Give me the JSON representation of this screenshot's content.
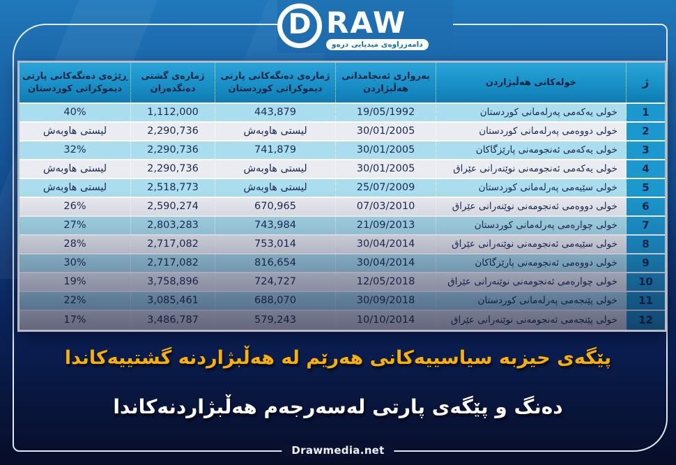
{
  "header": {
    "brand_initial": "D",
    "brand_rest": "RAW",
    "tagline": "دامەزراوەی میدیایی درەو"
  },
  "chart_data": {
    "type": "table",
    "direction": "rtl",
    "columns": [
      "ژ",
      "خولەکانی هەڵبژاردن",
      "بەرواری ئەنجامدانی هەڵبژاردن",
      "ژمارەی دەنگەکانی پارتی دیموکراتی کوردستان",
      "ژمارەی گشتی دەنگدەران",
      "ڕێژەی دەنگەکانی پارتی دیموکراتی کوردستان"
    ],
    "rows": [
      {
        "no": "1",
        "round": "خولی یەکەمی پەرلەمانی کوردستان",
        "date": "19/05/1992",
        "kdp_votes": "443,879",
        "total_voters": "1,112,000",
        "kdp_pct": "40%"
      },
      {
        "no": "2",
        "round": "خولی دووەمی پەرلەمانی کوردستان",
        "date": "30/01/2005",
        "kdp_votes": "لیستی هاوبەش",
        "total_voters": "2,290,736",
        "kdp_pct": "لیستی هاوبەش"
      },
      {
        "no": "3",
        "round": "خولی یەکەمی ئەنجومەنی پارێزگاکان",
        "date": "30/01/2005",
        "kdp_votes": "741,879",
        "total_voters": "2,290,736",
        "kdp_pct": "32%"
      },
      {
        "no": "4",
        "round": "خولی یەکەمی ئەنجومەنی نوێنەرانی عێراق",
        "date": "30/01/2005",
        "kdp_votes": "لیستی هاوبەش",
        "total_voters": "2,290,736",
        "kdp_pct": "لیستی هاوبەش"
      },
      {
        "no": "5",
        "round": "خولی سێیەمی پەرلەمانی کوردستان",
        "date": "25/07/2009",
        "kdp_votes": "لیستی هاوبەش",
        "total_voters": "2,518,773",
        "kdp_pct": "لیستی هاوبەش"
      },
      {
        "no": "6",
        "round": "خولی دووەمی ئەنجومەنی نوێنەرانی عێراق",
        "date": "07/03/2010",
        "kdp_votes": "670,965",
        "total_voters": "2,590,274",
        "kdp_pct": "26%"
      },
      {
        "no": "7",
        "round": "خولی چوارەمی پەرلەمانی کوردستان",
        "date": "21/09/2013",
        "kdp_votes": "743,984",
        "total_voters": "2,803,283",
        "kdp_pct": "27%"
      },
      {
        "no": "8",
        "round": "خولی سێیەمی ئەنجومەنی نوێنەرانی عێراق",
        "date": "30/04/2014",
        "kdp_votes": "753,014",
        "total_voters": "2,717,082",
        "kdp_pct": "28%"
      },
      {
        "no": "9",
        "round": "خولی دووەمی ئەنجومەنی پارێزگاکان",
        "date": "30/04/2014",
        "kdp_votes": "816,654",
        "total_voters": "2,717,082",
        "kdp_pct": "30%"
      },
      {
        "no": "10",
        "round": "خولی چوارەمی ئەنجومەنی نوێنەرانی عێراق",
        "date": "12/05/2018",
        "kdp_votes": "724,727",
        "total_voters": "3,758,896",
        "kdp_pct": "19%"
      },
      {
        "no": "11",
        "round": "خولی پێنجەمی پەرلەمانی کوردستان",
        "date": "30/09/2018",
        "kdp_votes": "688,070",
        "total_voters": "3,085,461",
        "kdp_pct": "22%"
      },
      {
        "no": "12",
        "round": "خولی پێنجەمی ئەنجومەنی نوێنەرانی عێراق",
        "date": "10/10/2014",
        "kdp_votes": "579,243",
        "total_voters": "3,486,787",
        "kdp_pct": "17%"
      }
    ],
    "title": "پێگەی حیزبە سیاسییەکانی هەرێم لە هەڵبژاردنە گشتییەکاندا",
    "subtitle": "دەنگ و پێگەی پارتی لەسەرجەم هەڵبژاردنەکاندا"
  },
  "caption": {
    "line1": "پێگەی حیزبە سیاسییەکانی هەرێم لە هەڵبژاردنە گشتییەکاندا",
    "line2": "دەنگ و پێگەی پارتی لەسەرجەم هەڵبژاردنەکاندا"
  },
  "footer": {
    "site": "Drawmedia.net"
  },
  "colors": {
    "header_blue": "#1b94cb",
    "index_blue": "#1b98ce",
    "row_blue": "#aadded",
    "row_gray": "#ebecf1",
    "caption_yellow": "#f9b006",
    "bg_navy": "#0a1540",
    "frame_white": "#e3eaf2"
  }
}
